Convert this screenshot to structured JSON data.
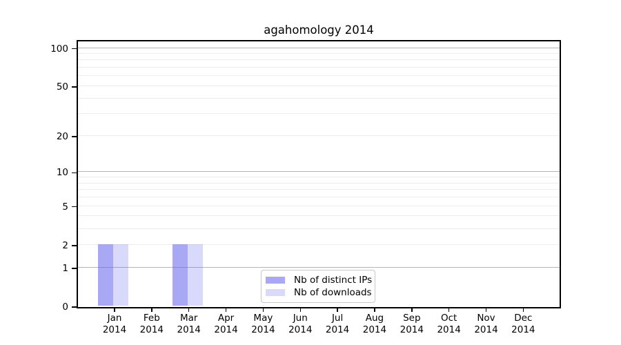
{
  "figure": {
    "title": "agahomology 2014"
  },
  "chart_data": {
    "type": "bar",
    "title": "agahomology 2014",
    "x_categories": [
      "Jan",
      "Feb",
      "Mar",
      "Apr",
      "May",
      "Jun",
      "Jul",
      "Aug",
      "Sep",
      "Oct",
      "Nov",
      "Dec"
    ],
    "x_year": "2014",
    "series": [
      {
        "name": "Nb of distinct IPs",
        "color": "rgba(97,97,237,0.55)",
        "solid_color": "#a8a8f5",
        "values": [
          2,
          0,
          2,
          0,
          0,
          0,
          0,
          0,
          0,
          0,
          0,
          0
        ]
      },
      {
        "name": "Nb of downloads",
        "color": "rgba(97,97,237,0.24)",
        "solid_color": "#d9d9f9",
        "values": [
          2,
          0,
          2,
          0,
          0,
          0,
          0,
          0,
          0,
          0,
          0,
          0
        ]
      }
    ],
    "y_scale": "log10(1+y)",
    "ylim": [
      0,
      113
    ],
    "y_ticks": [
      0,
      1,
      2,
      5,
      10,
      20,
      50,
      100
    ],
    "y_major_grid": [
      1,
      10,
      100
    ],
    "y_minor_grid": [
      2,
      3,
      4,
      5,
      6,
      7,
      8,
      9,
      20,
      30,
      40,
      50,
      60,
      70,
      80,
      90
    ],
    "grid": true,
    "legend_position": "lower center"
  },
  "colors": {
    "major_grid": "#b4b4b4",
    "minor_grid": "#ececec",
    "spine": "#000000",
    "text": "#000000",
    "legend_border": "#c8c8c8",
    "background": "#ffffff"
  }
}
